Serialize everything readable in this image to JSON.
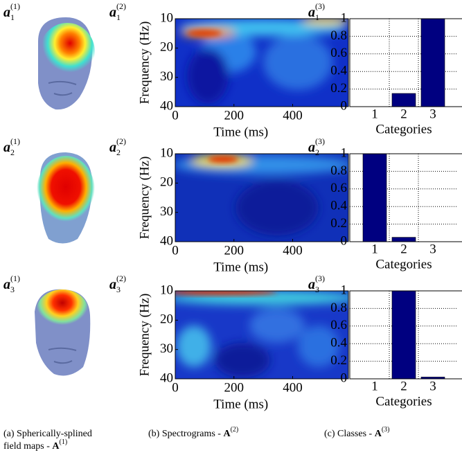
{
  "head_maps": [
    {
      "label": {
        "base": "a",
        "sub": "1",
        "sup": "(1)"
      }
    },
    {
      "label": {
        "base": "a",
        "sub": "2",
        "sup": "(1)"
      }
    },
    {
      "label": {
        "base": "a",
        "sub": "3",
        "sup": "(1)"
      }
    }
  ],
  "chart_data": [
    {
      "type": "spectrogram",
      "label": {
        "base": "a",
        "sub": "1",
        "sup": "(2)"
      },
      "xlabel": "Time (ms)",
      "ylabel": "Frequency (Hz)",
      "xlim": [
        0,
        590
      ],
      "xticks": [
        0,
        200,
        400
      ],
      "ylim": [
        40,
        10
      ],
      "yticks": [
        10,
        20,
        30,
        40
      ]
    },
    {
      "type": "bar",
      "label": {
        "base": "a",
        "sub": "1",
        "sup": "(3)"
      },
      "xlabel": "Categories",
      "categories": [
        "1",
        "2",
        "3"
      ],
      "values": [
        0,
        0.15,
        1
      ],
      "color": "#000080",
      "ylim": [
        0,
        1
      ],
      "yticks": [
        0,
        0.2,
        0.4,
        0.6,
        0.8,
        1
      ],
      "grid": true
    },
    {
      "type": "spectrogram",
      "label": {
        "base": "a",
        "sub": "2",
        "sup": "(2)"
      },
      "xlabel": "Time (ms)",
      "ylabel": "Frequency (Hz)",
      "xlim": [
        0,
        590
      ],
      "xticks": [
        0,
        200,
        400
      ],
      "ylim": [
        40,
        10
      ],
      "yticks": [
        10,
        20,
        30,
        40
      ]
    },
    {
      "type": "bar",
      "label": {
        "base": "a",
        "sub": "2",
        "sup": "(3)"
      },
      "xlabel": "Categories",
      "categories": [
        "1",
        "2",
        "3"
      ],
      "values": [
        1,
        0.05,
        0
      ],
      "color": "#000080",
      "ylim": [
        0,
        1
      ],
      "yticks": [
        0,
        0.2,
        0.4,
        0.6,
        0.8,
        1
      ],
      "grid": true
    },
    {
      "type": "spectrogram",
      "label": {
        "base": "a",
        "sub": "3",
        "sup": "(2)"
      },
      "xlabel": "Time (ms)",
      "ylabel": "Frequency (Hz)",
      "xlim": [
        0,
        590
      ],
      "xticks": [
        0,
        200,
        400
      ],
      "ylim": [
        40,
        10
      ],
      "yticks": [
        10,
        20,
        30,
        40
      ]
    },
    {
      "type": "bar",
      "label": {
        "base": "a",
        "sub": "3",
        "sup": "(3)"
      },
      "xlabel": "Categories",
      "categories": [
        "1",
        "2",
        "3"
      ],
      "values": [
        0,
        1,
        0.02
      ],
      "color": "#000080",
      "ylim": [
        0,
        1
      ],
      "yticks": [
        0,
        0.2,
        0.4,
        0.6,
        0.8,
        1
      ],
      "grid": true
    }
  ],
  "captions": [
    {
      "text": "(a) Spherically-splined field maps - ",
      "symbol": "A",
      "sup": "(1)"
    },
    {
      "text": "(b) Spectrograms - ",
      "symbol": "A",
      "sup": "(2)"
    },
    {
      "text": "(c) Classes - ",
      "symbol": "A",
      "sup": "(3)"
    }
  ]
}
